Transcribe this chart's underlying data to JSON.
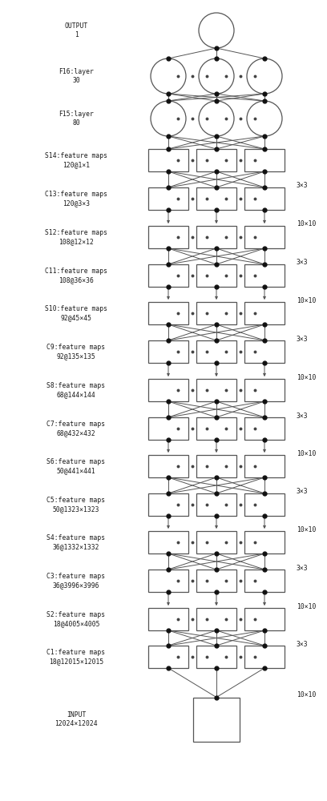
{
  "figsize": [
    4.08,
    10.0
  ],
  "dpi": 100,
  "bg_color": "#ffffff",
  "layers": [
    {
      "name": "OUTPUT",
      "type": "output",
      "label_left": "OUTPUT\n1",
      "label_right": null
    },
    {
      "name": "F16",
      "type": "fc",
      "label_left": "F16:layer\n30",
      "label_right": null
    },
    {
      "name": "F15",
      "type": "fc",
      "label_left": "F15:layer\n80",
      "label_right": null
    },
    {
      "name": "S14",
      "type": "feat",
      "label_left": "S14:feature maps\n120@1×1",
      "label_right": null
    },
    {
      "name": "C13",
      "type": "feat",
      "label_left": "C13:feature maps\n120@3×3",
      "label_right": "3×3"
    },
    {
      "name": "S12",
      "type": "feat",
      "label_left": "S12:feature maps\n108@12×12",
      "label_right": "10×10"
    },
    {
      "name": "C11",
      "type": "feat",
      "label_left": "C11:feature maps\n108@36×36",
      "label_right": "3×3"
    },
    {
      "name": "S10",
      "type": "feat",
      "label_left": "S10:feature maps\n92@45×45",
      "label_right": "10×10"
    },
    {
      "name": "C9",
      "type": "feat",
      "label_left": "C9:feature maps\n92@135×135",
      "label_right": "3×3"
    },
    {
      "name": "S8",
      "type": "feat",
      "label_left": "S8:feature maps\n68@144×144",
      "label_right": "10×10"
    },
    {
      "name": "C7",
      "type": "feat",
      "label_left": "C7:feature maps\n68@432×432",
      "label_right": "3×3"
    },
    {
      "name": "S6",
      "type": "feat",
      "label_left": "S6:feature maps\n50@441×441",
      "label_right": "10×10"
    },
    {
      "name": "C5",
      "type": "feat",
      "label_left": "C5:feature maps\n50@1323×1323",
      "label_right": "3×3"
    },
    {
      "name": "S4",
      "type": "feat",
      "label_left": "S4:feature maps\n36@1332×1332",
      "label_right": "10×10"
    },
    {
      "name": "C3",
      "type": "feat",
      "label_left": "C3:feature maps\n36@3996×3996",
      "label_right": "3×3"
    },
    {
      "name": "S2",
      "type": "feat",
      "label_left": "S2:feature maps\n18@4005×4005",
      "label_right": "10×10"
    },
    {
      "name": "C1",
      "type": "feat",
      "label_left": "C1:feature maps\n18@12015×12015",
      "label_right": "3×3"
    },
    {
      "name": "INPUT",
      "type": "input",
      "label_left": "INPUT\n12024×12024",
      "label_right": "10×10"
    }
  ],
  "text_color": "#1a1a1a",
  "line_color": "#555555",
  "dot_color": "#111111",
  "box_edge_color": "#555555"
}
